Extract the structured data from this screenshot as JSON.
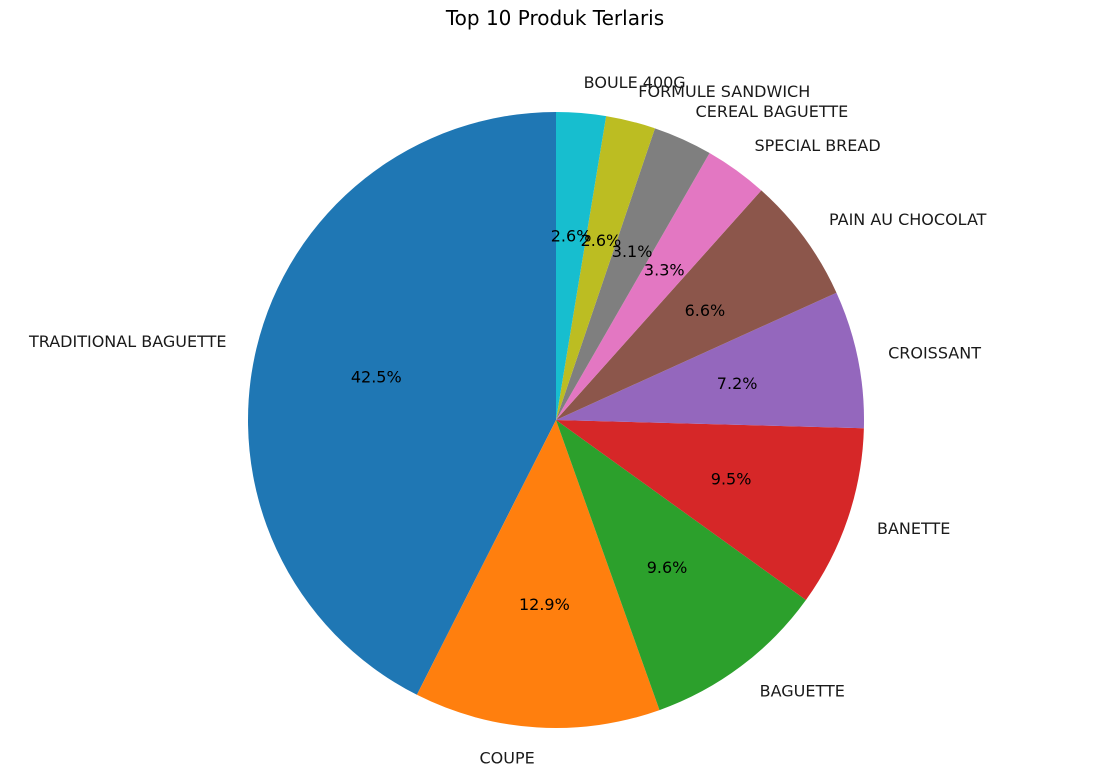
{
  "chart_data": {
    "type": "pie",
    "title": "Top 10 Produk Terlaris",
    "start_angle_deg": 90,
    "direction": "counterclockwise",
    "slices": [
      {
        "label": "TRADITIONAL BAGUETTE",
        "value": 42.5,
        "pct_label": "42.5%",
        "color": "#1f77b4"
      },
      {
        "label": "COUPE",
        "value": 12.9,
        "pct_label": "12.9%",
        "color": "#ff7f0e"
      },
      {
        "label": "BAGUETTE",
        "value": 9.6,
        "pct_label": "9.6%",
        "color": "#2ca02c"
      },
      {
        "label": "BANETTE",
        "value": 9.5,
        "pct_label": "9.5%",
        "color": "#d62728"
      },
      {
        "label": "CROISSANT",
        "value": 7.2,
        "pct_label": "7.2%",
        "color": "#9467bd"
      },
      {
        "label": "PAIN AU CHOCOLAT",
        "value": 6.6,
        "pct_label": "6.6%",
        "color": "#8c564b"
      },
      {
        "label": "SPECIAL BREAD",
        "value": 3.3,
        "pct_label": "3.3%",
        "color": "#e377c2"
      },
      {
        "label": "CEREAL BAGUETTE",
        "value": 3.1,
        "pct_label": "3.1%",
        "color": "#7f7f7f"
      },
      {
        "label": "FORMULE SANDWICH",
        "value": 2.6,
        "pct_label": "2.6%",
        "color": "#bcbd22"
      },
      {
        "label": "BOULE 400G",
        "value": 2.6,
        "pct_label": "2.6%",
        "color": "#17becf"
      }
    ]
  }
}
